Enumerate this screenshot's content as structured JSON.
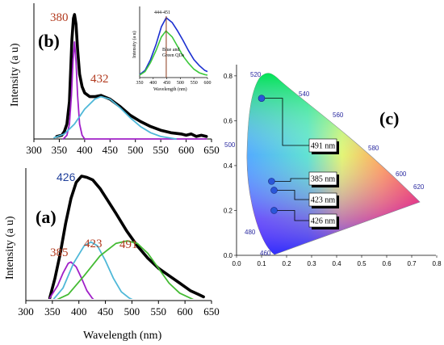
{
  "chart_data": [
    {
      "panel_label": "(b)",
      "type": "line",
      "xlabel": "",
      "ylabel": "Intensity (a u)",
      "xlim": [
        300,
        650
      ],
      "x_ticks": [
        "300",
        "350",
        "400",
        "450",
        "500",
        "550",
        "600",
        "650"
      ],
      "annotations": [
        "380",
        "432"
      ],
      "series": [
        {
          "color": "#000000",
          "style": "measured",
          "points": [
            [
              345,
              0.02
            ],
            [
              355,
              0.03
            ],
            [
              360,
              0.06
            ],
            [
              365,
              0.12
            ],
            [
              370,
              0.3
            ],
            [
              375,
              0.8
            ],
            [
              378,
              0.97
            ],
            [
              380,
              1.0
            ],
            [
              383,
              0.92
            ],
            [
              386,
              0.72
            ],
            [
              390,
              0.52
            ],
            [
              395,
              0.42
            ],
            [
              400,
              0.37
            ],
            [
              410,
              0.34
            ],
            [
              420,
              0.34
            ],
            [
              432,
              0.35
            ],
            [
              450,
              0.32
            ],
            [
              470,
              0.26
            ],
            [
              490,
              0.19
            ],
            [
              510,
              0.14
            ],
            [
              530,
              0.1
            ],
            [
              550,
              0.07
            ],
            [
              570,
              0.05
            ],
            [
              590,
              0.04
            ],
            [
              600,
              0.03
            ],
            [
              610,
              0.04
            ],
            [
              620,
              0.02
            ],
            [
              630,
              0.03
            ],
            [
              640,
              0.02
            ]
          ]
        },
        {
          "color": "#a020c8",
          "style": "fit",
          "points": [
            [
              358,
              0.0
            ],
            [
              365,
              0.03
            ],
            [
              370,
              0.12
            ],
            [
              374,
              0.35
            ],
            [
              377,
              0.62
            ],
            [
              380,
              0.78
            ],
            [
              383,
              0.62
            ],
            [
              386,
              0.35
            ],
            [
              390,
              0.12
            ],
            [
              395,
              0.03
            ],
            [
              400,
              0.0
            ],
            [
              420,
              0.0
            ],
            [
              500,
              0.0
            ],
            [
              640,
              0.0
            ]
          ]
        },
        {
          "color": "#4fb8d8",
          "style": "fit",
          "points": [
            [
              340,
              0.01
            ],
            [
              360,
              0.04
            ],
            [
              380,
              0.12
            ],
            [
              400,
              0.24
            ],
            [
              420,
              0.32
            ],
            [
              432,
              0.34
            ],
            [
              450,
              0.32
            ],
            [
              470,
              0.25
            ],
            [
              490,
              0.17
            ],
            [
              510,
              0.1
            ],
            [
              530,
              0.05
            ],
            [
              550,
              0.02
            ],
            [
              580,
              0.0
            ]
          ]
        }
      ]
    },
    {
      "panel_label": "inset",
      "type": "line",
      "annotation": "444-451",
      "legend_text": [
        "Blue and",
        "Green QDs"
      ],
      "xlabel": "Wavelength (nm)",
      "ylabel": "Intensity (a u)",
      "xlim": [
        350,
        600
      ],
      "x_ticks": [
        "350",
        "400",
        "450",
        "500",
        "550",
        "600"
      ],
      "series": [
        {
          "color": "#1b2fd0",
          "points": [
            [
              350,
              0.05
            ],
            [
              370,
              0.12
            ],
            [
              390,
              0.3
            ],
            [
              410,
              0.55
            ],
            [
              430,
              0.85
            ],
            [
              448,
              1.0
            ],
            [
              470,
              0.92
            ],
            [
              490,
              0.78
            ],
            [
              510,
              0.62
            ],
            [
              530,
              0.45
            ],
            [
              550,
              0.3
            ],
            [
              570,
              0.2
            ],
            [
              590,
              0.12
            ],
            [
              600,
              0.1
            ]
          ]
        },
        {
          "color": "#3cc83c",
          "points": [
            [
              350,
              0.04
            ],
            [
              370,
              0.1
            ],
            [
              390,
              0.25
            ],
            [
              410,
              0.45
            ],
            [
              430,
              0.68
            ],
            [
              447,
              0.78
            ],
            [
              470,
              0.68
            ],
            [
              490,
              0.52
            ],
            [
              510,
              0.36
            ],
            [
              530,
              0.24
            ],
            [
              550,
              0.14
            ],
            [
              570,
              0.08
            ],
            [
              590,
              0.05
            ],
            [
              600,
              0.04
            ]
          ]
        }
      ],
      "marker_x": 448
    },
    {
      "panel_label": "(a)",
      "type": "line",
      "xlabel": "Wavelength (nm)",
      "ylabel": "Intensity (a u)",
      "xlim": [
        300,
        650
      ],
      "x_ticks": [
        "300",
        "350",
        "400",
        "450",
        "500",
        "550",
        "600",
        "650"
      ],
      "annotations": [
        "426",
        "385",
        "423",
        "491"
      ],
      "series": [
        {
          "color": "#000000",
          "style": "measured",
          "points": [
            [
              345,
              0.02
            ],
            [
              355,
              0.18
            ],
            [
              365,
              0.38
            ],
            [
              375,
              0.62
            ],
            [
              385,
              0.82
            ],
            [
              395,
              0.95
            ],
            [
              405,
              1.0
            ],
            [
              415,
              0.99
            ],
            [
              426,
              0.97
            ],
            [
              440,
              0.9
            ],
            [
              455,
              0.8
            ],
            [
              470,
              0.7
            ],
            [
              490,
              0.56
            ],
            [
              510,
              0.44
            ],
            [
              530,
              0.34
            ],
            [
              550,
              0.26
            ],
            [
              570,
              0.2
            ],
            [
              590,
              0.14
            ],
            [
              610,
              0.08
            ],
            [
              625,
              0.05
            ],
            [
              635,
              0.03
            ]
          ]
        },
        {
          "color": "#a020c8",
          "style": "fit",
          "points": [
            [
              345,
              0.02
            ],
            [
              360,
              0.12
            ],
            [
              370,
              0.22
            ],
            [
              380,
              0.3
            ],
            [
              385,
              0.31
            ],
            [
              395,
              0.27
            ],
            [
              405,
              0.18
            ],
            [
              415,
              0.08
            ],
            [
              425,
              0.02
            ],
            [
              430,
              0.0
            ]
          ]
        },
        {
          "color": "#4fb8d8",
          "style": "fit",
          "points": [
            [
              350,
              0.0
            ],
            [
              370,
              0.1
            ],
            [
              390,
              0.3
            ],
            [
              410,
              0.44
            ],
            [
              423,
              0.47
            ],
            [
              435,
              0.44
            ],
            [
              450,
              0.32
            ],
            [
              465,
              0.18
            ],
            [
              480,
              0.07
            ],
            [
              495,
              0.02
            ],
            [
              505,
              0.0
            ]
          ]
        },
        {
          "color": "#44bb33",
          "style": "fit",
          "points": [
            [
              355,
              0.0
            ],
            [
              380,
              0.05
            ],
            [
              410,
              0.2
            ],
            [
              440,
              0.36
            ],
            [
              470,
              0.46
            ],
            [
              491,
              0.48
            ],
            [
              510,
              0.46
            ],
            [
              530,
              0.38
            ],
            [
              550,
              0.26
            ],
            [
              570,
              0.14
            ],
            [
              590,
              0.06
            ],
            [
              610,
              0.02
            ],
            [
              620,
              0.0
            ]
          ]
        }
      ]
    },
    {
      "panel_label": "(c)",
      "type": "scatter",
      "xlim": [
        0.0,
        0.8
      ],
      "ylim": [
        0.0,
        0.85
      ],
      "x_ticks": [
        "0.0",
        "0.1",
        "0.2",
        "0.3",
        "0.4",
        "0.5",
        "0.6",
        "0.7",
        "0.8"
      ],
      "y_ticks": [
        "0.0",
        "0.2",
        "0.4",
        "0.6",
        "0.8"
      ],
      "locus_labels": [
        "520",
        "540",
        "560",
        "500",
        "580",
        "600",
        "620",
        "480",
        "460"
      ],
      "points": [
        {
          "label": "491 nm",
          "x": 0.1,
          "y": 0.7
        },
        {
          "label": "385 nm",
          "x": 0.14,
          "y": 0.33
        },
        {
          "label": "423 nm",
          "x": 0.15,
          "y": 0.29
        },
        {
          "label": "426 nm",
          "x": 0.15,
          "y": 0.2
        }
      ]
    }
  ]
}
